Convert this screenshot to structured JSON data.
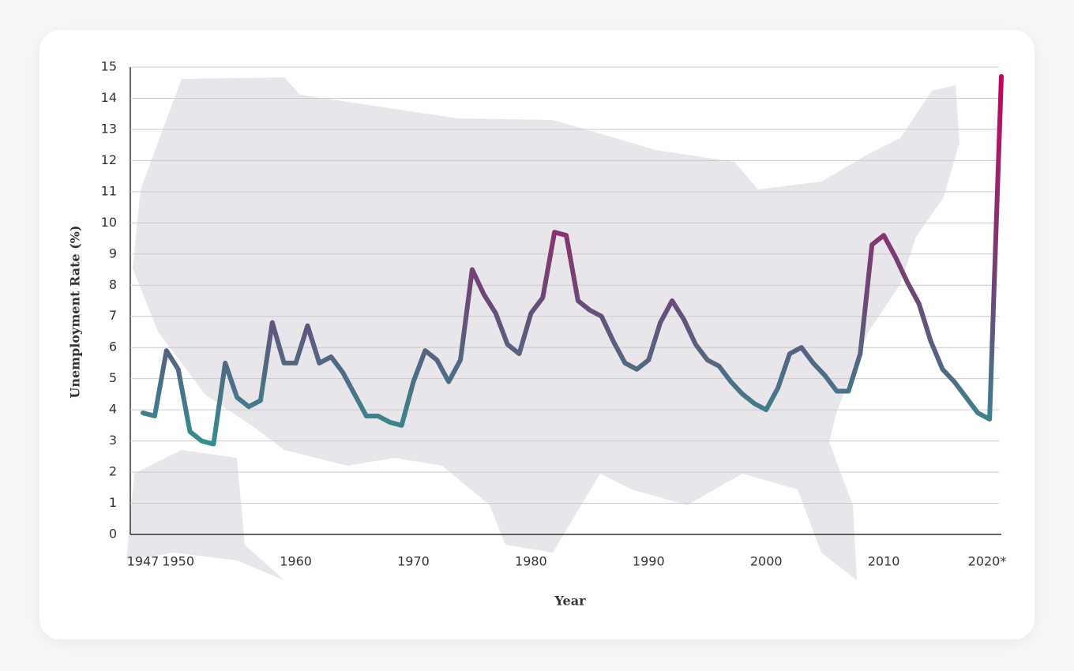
{
  "chart_data": {
    "type": "line",
    "xlabel": "Year",
    "ylabel": "Unemployment Rate (%)",
    "x": [
      1947,
      1948,
      1949,
      1950,
      1951,
      1952,
      1953,
      1954,
      1955,
      1956,
      1957,
      1958,
      1959,
      1960,
      1961,
      1962,
      1963,
      1964,
      1965,
      1966,
      1967,
      1968,
      1969,
      1970,
      1971,
      1972,
      1973,
      1974,
      1975,
      1976,
      1977,
      1978,
      1979,
      1980,
      1981,
      1982,
      1983,
      1984,
      1985,
      1986,
      1987,
      1988,
      1989,
      1990,
      1991,
      1992,
      1993,
      1994,
      1995,
      1996,
      1997,
      1998,
      1999,
      2000,
      2001,
      2002,
      2003,
      2004,
      2005,
      2006,
      2007,
      2008,
      2009,
      2010,
      2011,
      2012,
      2013,
      2014,
      2015,
      2016,
      2017,
      2018,
      2019,
      2020
    ],
    "values": [
      3.9,
      3.8,
      5.9,
      5.3,
      3.3,
      3.0,
      2.9,
      5.5,
      4.4,
      4.1,
      4.3,
      6.8,
      5.5,
      5.5,
      6.7,
      5.5,
      5.7,
      5.2,
      4.5,
      3.8,
      3.8,
      3.6,
      3.5,
      4.9,
      5.9,
      5.6,
      4.9,
      5.6,
      8.5,
      7.7,
      7.1,
      6.1,
      5.8,
      7.1,
      7.6,
      9.7,
      9.6,
      7.5,
      7.2,
      7.0,
      6.2,
      5.5,
      5.3,
      5.6,
      6.8,
      7.5,
      6.9,
      6.1,
      5.6,
      5.4,
      4.9,
      4.5,
      4.2,
      4.0,
      4.7,
      5.8,
      6.0,
      5.5,
      5.1,
      4.6,
      4.6,
      5.8,
      9.3,
      9.6,
      8.9,
      8.1,
      7.4,
      6.2,
      5.3,
      4.9,
      4.4,
      3.9,
      3.7,
      14.7
    ],
    "gradient": [
      "#12b8a0",
      "#6a4a78",
      "#c8005e"
    ],
    "xlim": [
      1947,
      2020
    ],
    "ylim": [
      0,
      15
    ],
    "xticks": [
      1947,
      1950,
      1960,
      1970,
      1980,
      1990,
      2000,
      2010,
      {
        "value": 2020,
        "label": "2020*"
      }
    ],
    "yticks": [
      0,
      1,
      2,
      3,
      4,
      5,
      6,
      7,
      8,
      9,
      10,
      11,
      12,
      13,
      14,
      15
    ],
    "grid": true
  }
}
